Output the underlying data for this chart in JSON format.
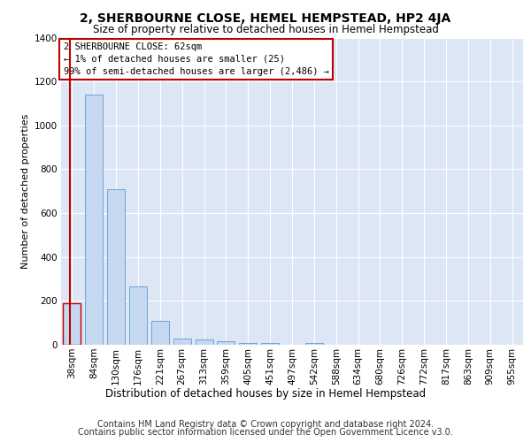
{
  "title_line1": "2, SHERBOURNE CLOSE, HEMEL HEMPSTEAD, HP2 4JA",
  "title_line2": "Size of property relative to detached houses in Hemel Hempstead",
  "xlabel": "Distribution of detached houses by size in Hemel Hempstead",
  "ylabel": "Number of detached properties",
  "footer_line1": "Contains HM Land Registry data © Crown copyright and database right 2024.",
  "footer_line2": "Contains public sector information licensed under the Open Government Licence v3.0.",
  "categories": [
    "38sqm",
    "84sqm",
    "130sqm",
    "176sqm",
    "221sqm",
    "267sqm",
    "313sqm",
    "359sqm",
    "405sqm",
    "451sqm",
    "497sqm",
    "542sqm",
    "588sqm",
    "634sqm",
    "680sqm",
    "726sqm",
    "772sqm",
    "817sqm",
    "863sqm",
    "909sqm",
    "955sqm"
  ],
  "values": [
    190,
    1140,
    710,
    265,
    110,
    30,
    25,
    15,
    10,
    10,
    0,
    10,
    0,
    0,
    0,
    0,
    0,
    0,
    0,
    0,
    0
  ],
  "bar_color": "#c5d8f0",
  "bar_edge_color": "#5b9bd5",
  "highlight_bar_edge_color": "#c00000",
  "vline_color": "#c00000",
  "annotation_text": "2 SHERBOURNE CLOSE: 62sqm\n← 1% of detached houses are smaller (25)\n99% of semi-detached houses are larger (2,486) →",
  "annotation_box_edgecolor": "#c00000",
  "annotation_box_facecolor": "#ffffff",
  "ylim": [
    0,
    1400
  ],
  "background_color": "#dce6f5",
  "grid_color": "#ffffff",
  "title1_fontsize": 10,
  "title2_fontsize": 8.5,
  "ylabel_fontsize": 8,
  "xlabel_fontsize": 8.5,
  "tick_fontsize": 7.5,
  "annotation_fontsize": 7.5,
  "footer_fontsize": 7
}
